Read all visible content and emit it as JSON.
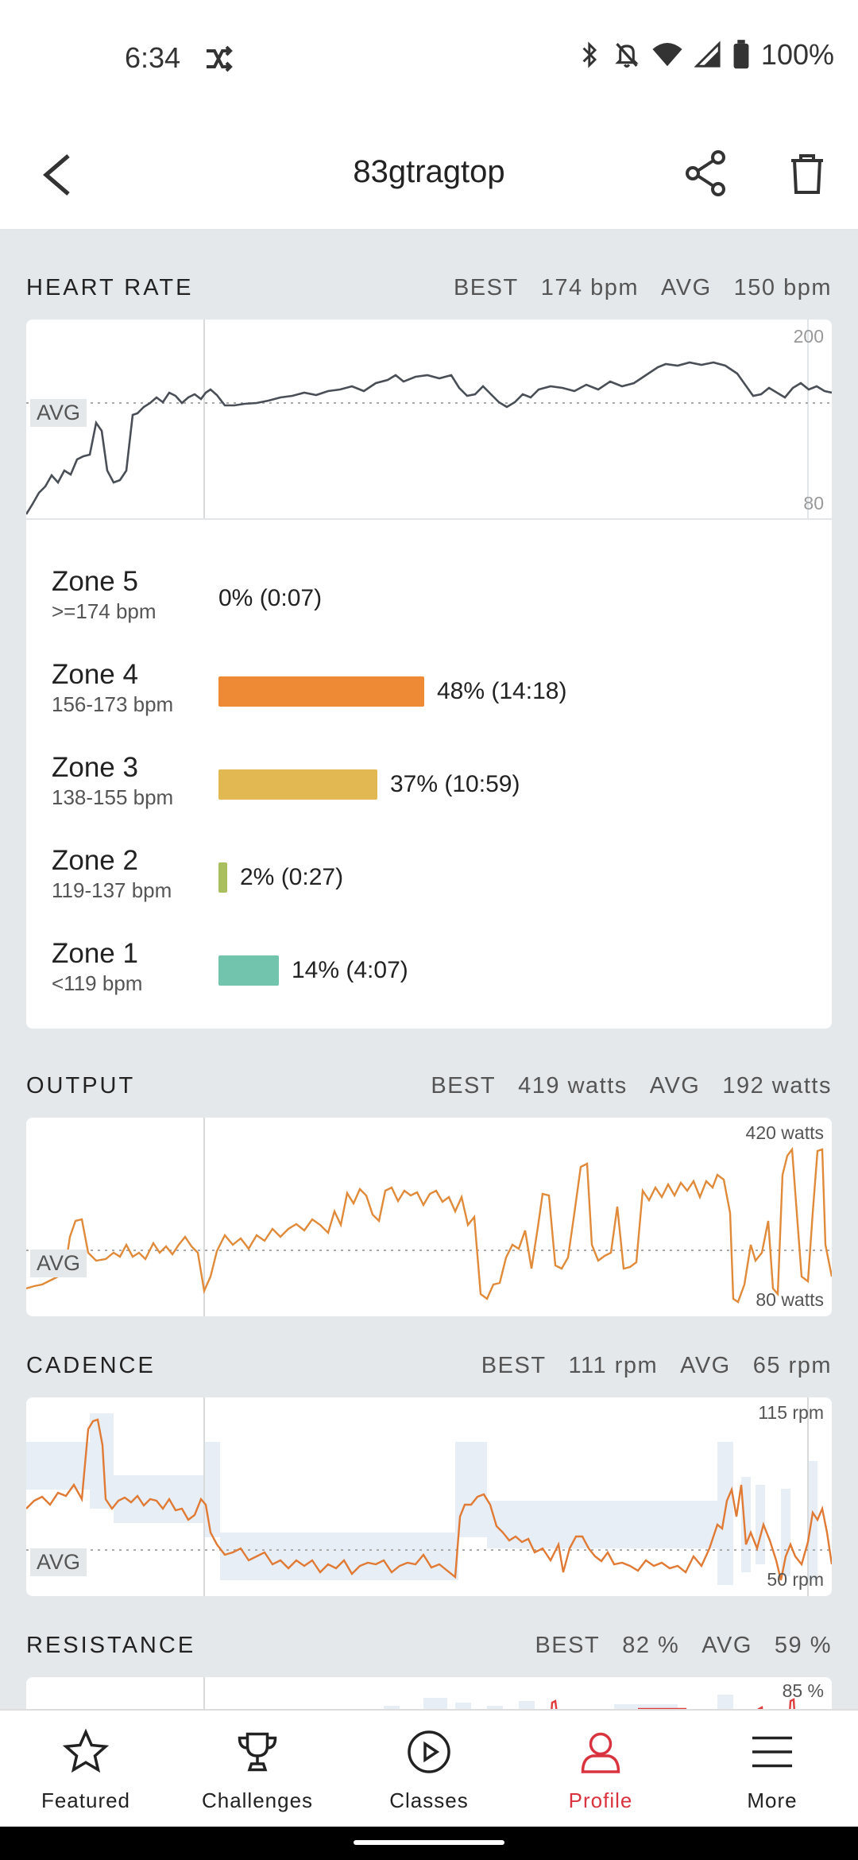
{
  "status_bar": {
    "time": "6:34",
    "battery": "100%"
  },
  "header": {
    "title": "83gtragtop"
  },
  "heart_rate": {
    "title": "HEART RATE",
    "best_label": "BEST",
    "best_value": "174 bpm",
    "avg_label": "AVG",
    "avg_value": "150 bpm",
    "scale_top": "200",
    "scale_bottom": "80",
    "avg_tag": "AVG"
  },
  "zones": [
    {
      "name": "Zone 5",
      "range": ">=174 bpm",
      "pct": 0,
      "label": "0% (0:07)",
      "color": "#ee8a35"
    },
    {
      "name": "Zone 4",
      "range": "156-173 bpm",
      "pct": 48,
      "label": "48% (14:18)",
      "color": "#ee8a35"
    },
    {
      "name": "Zone 3",
      "range": "138-155 bpm",
      "pct": 37,
      "label": "37% (10:59)",
      "color": "#e2b852"
    },
    {
      "name": "Zone 2",
      "range": "119-137 bpm",
      "pct": 2,
      "label": "2% (0:27)",
      "color": "#a9bf5d"
    },
    {
      "name": "Zone 1",
      "range": "<119 bpm",
      "pct": 14,
      "label": "14% (4:07)",
      "color": "#72c4ad"
    }
  ],
  "output": {
    "title": "OUTPUT",
    "best_label": "BEST",
    "best_value": "419 watts",
    "avg_label": "AVG",
    "avg_value": "192 watts",
    "scale_top": "420 watts",
    "scale_bottom": "80 watts",
    "avg_tag": "AVG"
  },
  "cadence": {
    "title": "CADENCE",
    "best_label": "BEST",
    "best_value": "111 rpm",
    "avg_label": "AVG",
    "avg_value": "65 rpm",
    "scale_top": "115 rpm",
    "scale_bottom": "50 rpm",
    "avg_tag": "AVG"
  },
  "resistance": {
    "title": "RESISTANCE",
    "best_label": "BEST",
    "best_value": "82 %",
    "avg_label": "AVG",
    "avg_value": "59 %",
    "scale_top": "85 %"
  },
  "nav": [
    {
      "label": "Featured",
      "icon": "star-icon",
      "active": false
    },
    {
      "label": "Challenges",
      "icon": "trophy-icon",
      "active": false
    },
    {
      "label": "Classes",
      "icon": "play-circle-icon",
      "active": false
    },
    {
      "label": "Profile",
      "icon": "person-icon",
      "active": true
    },
    {
      "label": "More",
      "icon": "menu-icon",
      "active": false
    }
  ],
  "colors": {
    "accent": "#d9333f",
    "hr_line": "#4a4f57",
    "output_line": "#e07a35",
    "cadence_band": "#e7eef6"
  }
}
